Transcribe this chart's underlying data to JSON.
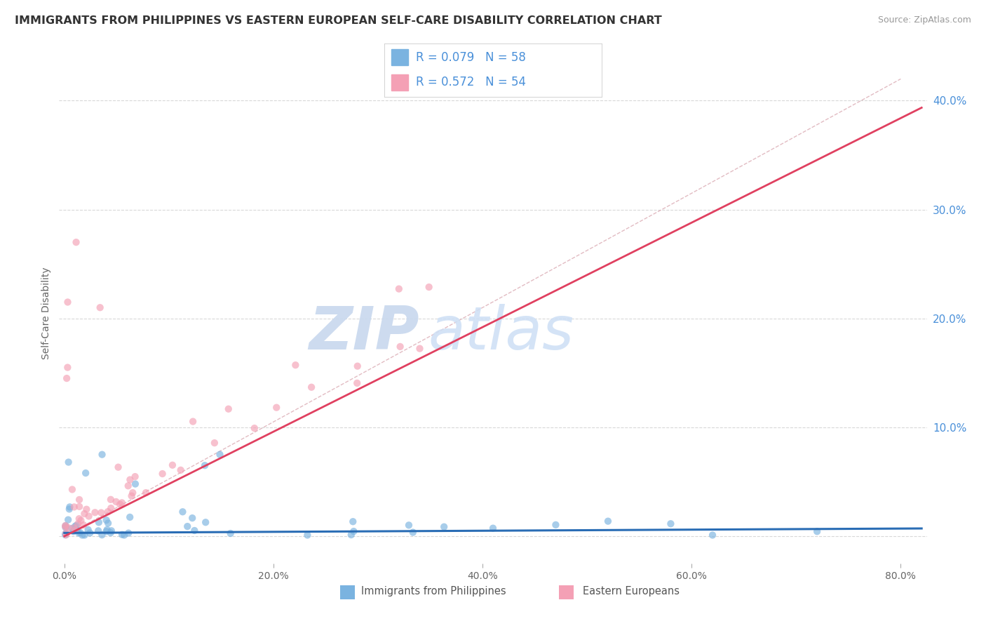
{
  "title": "IMMIGRANTS FROM PHILIPPINES VS EASTERN EUROPEAN SELF-CARE DISABILITY CORRELATION CHART",
  "source": "Source: ZipAtlas.com",
  "ylabel": "Self-Care Disability",
  "ytick_positions": [
    0.0,
    0.1,
    0.2,
    0.3,
    0.4
  ],
  "ytick_labels": [
    "",
    "10.0%",
    "20.0%",
    "30.0%",
    "40.0%"
  ],
  "xlim": [
    -0.005,
    0.825
  ],
  "ylim": [
    -0.025,
    0.435
  ],
  "philippines_color": "#7ab3e0",
  "eastern_eu_color": "#f4a0b5",
  "philippines_R": 0.079,
  "philippines_N": 58,
  "eastern_eu_R": 0.572,
  "eastern_eu_N": 54,
  "philippines_trend": [
    0.003,
    0.005
  ],
  "eastern_eu_trend_slope": 0.48,
  "eastern_eu_trend_intercept": 0.0,
  "background_color": "#ffffff",
  "grid_color": "#d8d8d8",
  "right_axis_color": "#4a90d9",
  "title_color": "#333333",
  "watermark_color": "#cddff5",
  "legend_R_color": "#4a90d9",
  "diag_line_color": "#ddb0b8",
  "blue_trend_color": "#2a6db5",
  "pink_trend_color": "#e04060"
}
